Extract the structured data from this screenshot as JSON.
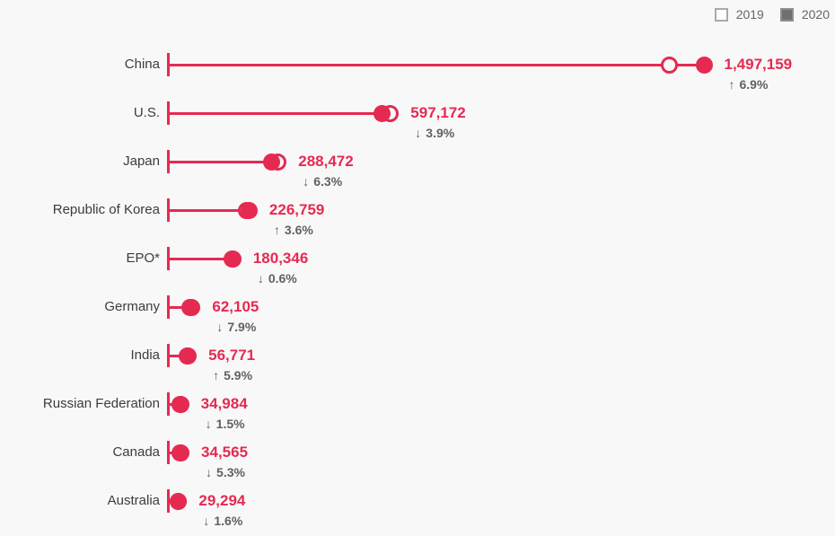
{
  "legend": {
    "items": [
      {
        "label": "2019",
        "swatch": "open-square"
      },
      {
        "label": "2020",
        "swatch": "filled-square"
      }
    ]
  },
  "colors": {
    "accent": "#e52a52",
    "category_text": "#3c3c3c",
    "value_text": "#e52a52",
    "change_text": "#616161",
    "legend_text": "#666666",
    "legend_filled_swatch": "#707070",
    "background": "#f8f8f8"
  },
  "arrows": {
    "up": "↑",
    "down": "↓"
  },
  "chart_data": {
    "type": "scatter",
    "variant": "lollipop-dot-plot",
    "title": "",
    "xlabel": "",
    "ylabel": "",
    "grid": false,
    "legend_position": "top-right",
    "legend_entries": [
      "2019",
      "2020"
    ],
    "x_axis": {
      "min": 0,
      "max_value_shown": 1497159,
      "visible": false
    },
    "categories": [
      "China",
      "U.S.",
      "Japan",
      "Republic of Korea",
      "EPO*",
      "Germany",
      "India",
      "Russian Federation",
      "Canada",
      "Australia"
    ],
    "rows": [
      {
        "label": "China",
        "value_2020": 1497159,
        "value_label": "1,497,159",
        "direction": "up",
        "pct": 6.9,
        "pct_label": "6.9%"
      },
      {
        "label": "U.S.",
        "value_2020": 597172,
        "value_label": "597,172",
        "direction": "down",
        "pct": 3.9,
        "pct_label": "3.9%"
      },
      {
        "label": "Japan",
        "value_2020": 288472,
        "value_label": "288,472",
        "direction": "down",
        "pct": 6.3,
        "pct_label": "6.3%"
      },
      {
        "label": "Republic of Korea",
        "value_2020": 226759,
        "value_label": "226,759",
        "direction": "up",
        "pct": 3.6,
        "pct_label": "3.6%"
      },
      {
        "label": "EPO*",
        "value_2020": 180346,
        "value_label": "180,346",
        "direction": "down",
        "pct": 0.6,
        "pct_label": "0.6%"
      },
      {
        "label": "Germany",
        "value_2020": 62105,
        "value_label": "62,105",
        "direction": "down",
        "pct": 7.9,
        "pct_label": "7.9%"
      },
      {
        "label": "India",
        "value_2020": 56771,
        "value_label": "56,771",
        "direction": "up",
        "pct": 5.9,
        "pct_label": "5.9%"
      },
      {
        "label": "Russian Federation",
        "value_2020": 34984,
        "value_label": "34,984",
        "direction": "down",
        "pct": 1.5,
        "pct_label": "1.5%"
      },
      {
        "label": "Canada",
        "value_2020": 34565,
        "value_label": "34,565",
        "direction": "down",
        "pct": 5.3,
        "pct_label": "5.3%"
      },
      {
        "label": "Australia",
        "value_2020": 29294,
        "value_label": "29,294",
        "direction": "down",
        "pct": 1.6,
        "pct_label": "1.6%"
      }
    ],
    "series": [
      {
        "name": "2020",
        "style": "filled-dot",
        "values": [
          1497159,
          597172,
          288472,
          226759,
          180346,
          62105,
          56771,
          34984,
          34565,
          29294
        ]
      },
      {
        "name": "2019",
        "style": "open-dot",
        "note": "positions derived from 2020 value and shown % change"
      }
    ]
  }
}
